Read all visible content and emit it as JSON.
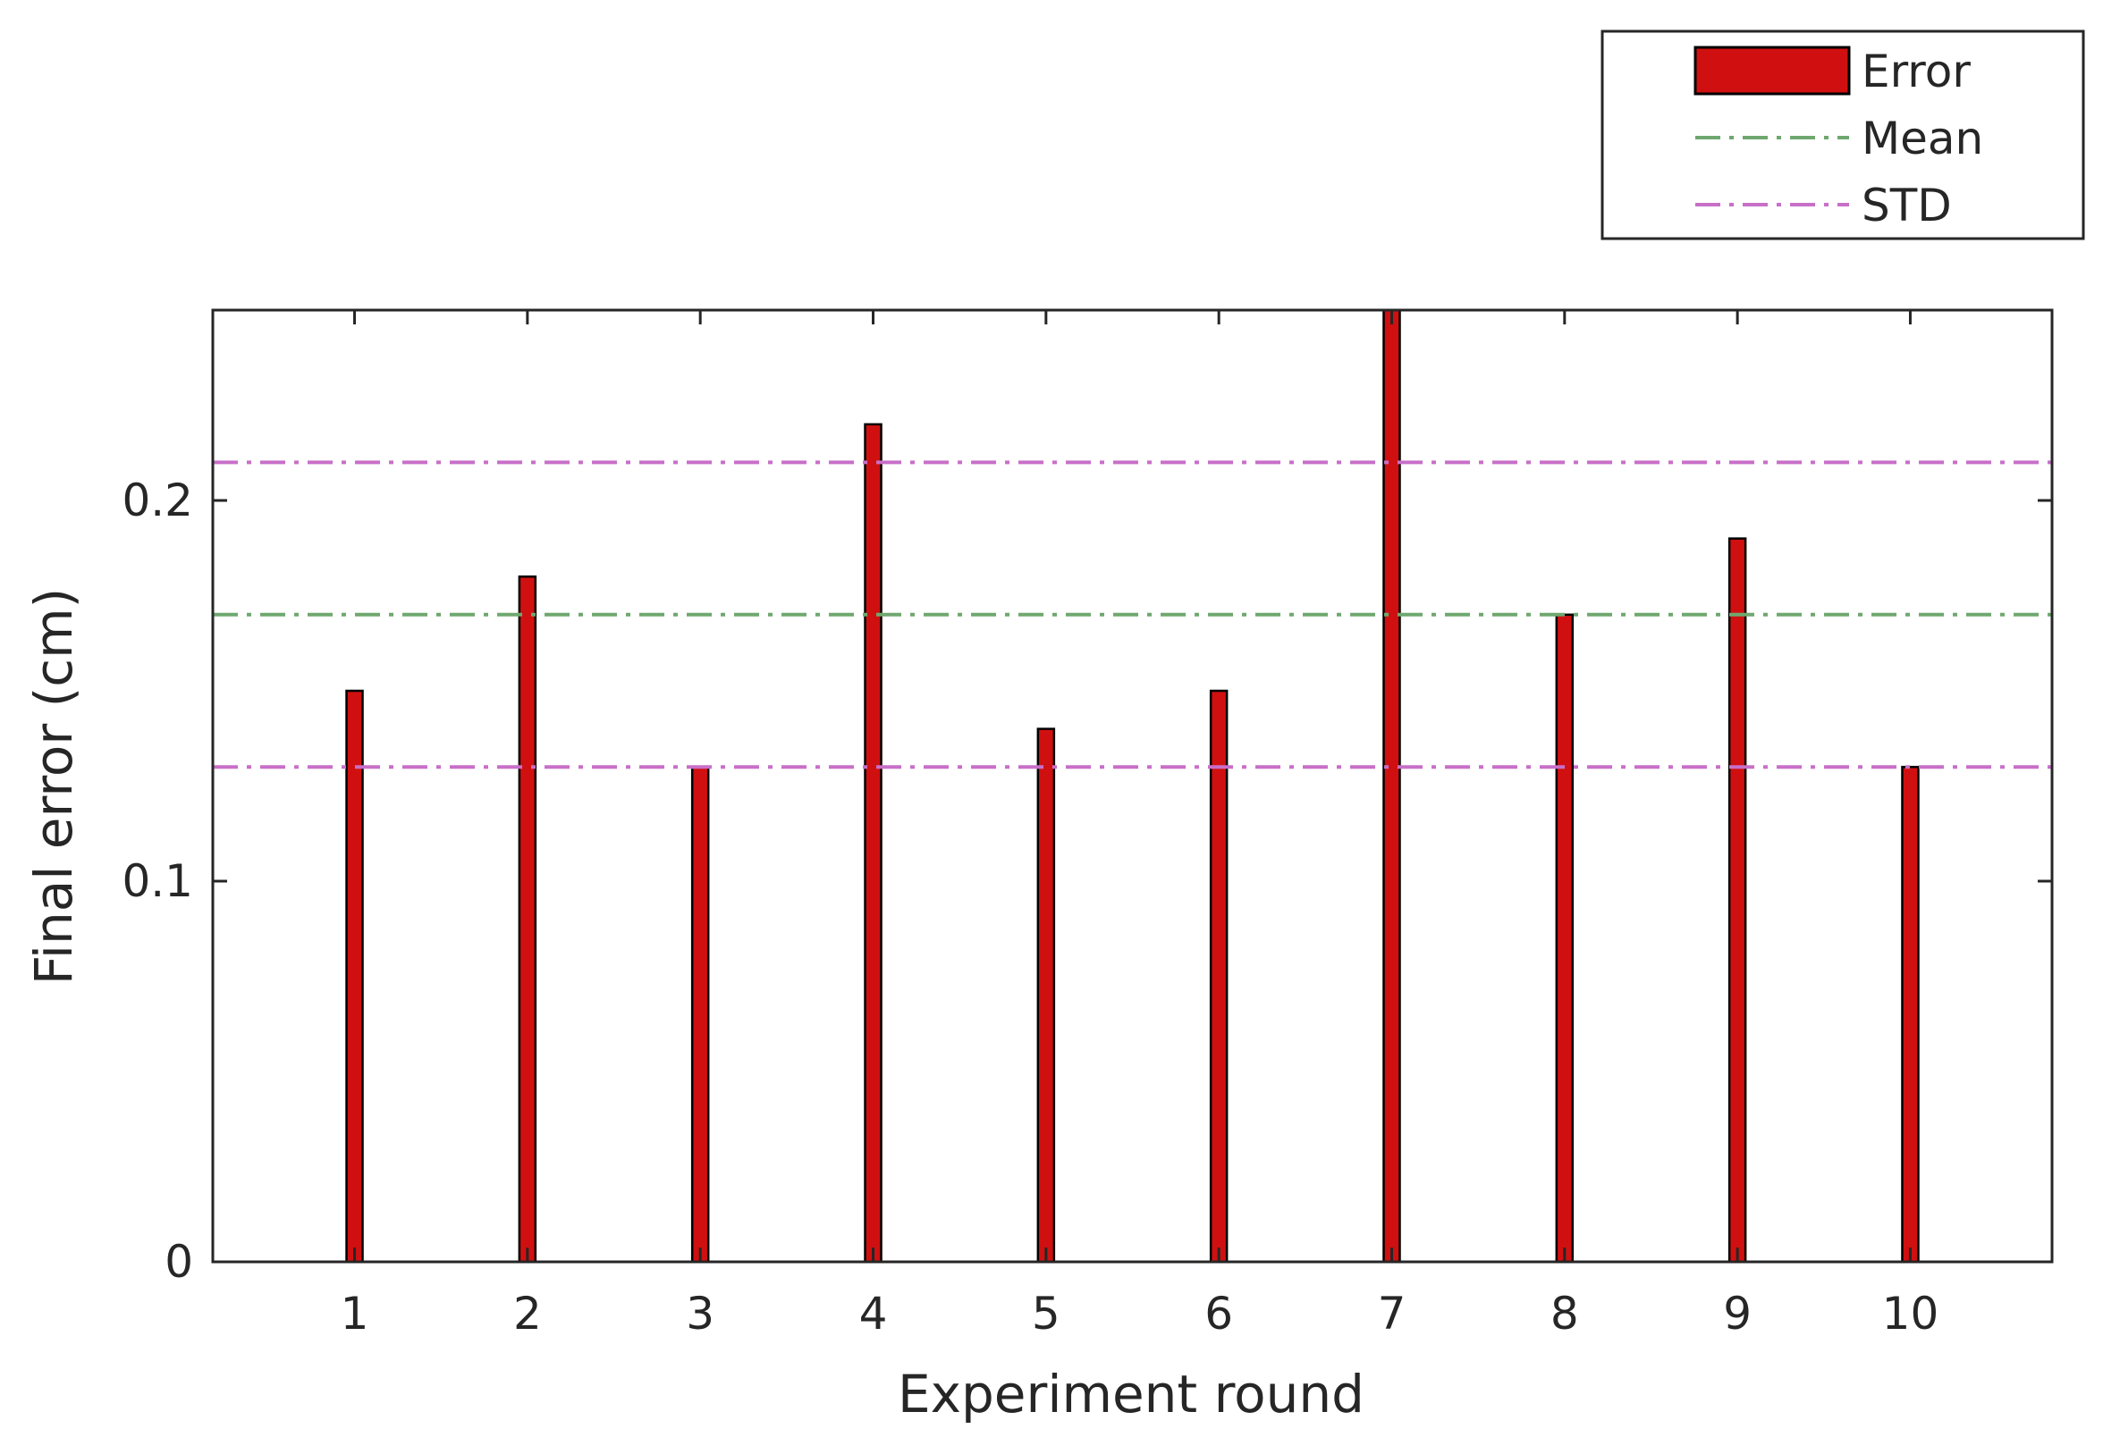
{
  "chart_data": {
    "type": "bar",
    "categories": [
      "1",
      "2",
      "3",
      "4",
      "5",
      "6",
      "7",
      "8",
      "9",
      "10"
    ],
    "series": [
      {
        "name": "Error",
        "values": [
          0.15,
          0.18,
          0.13,
          0.22,
          0.14,
          0.15,
          0.25,
          0.17,
          0.19,
          0.13
        ],
        "color": "#d01010"
      }
    ],
    "reference_lines": [
      {
        "name": "Mean",
        "values": [
          0.17
        ],
        "color": "#6fa86f",
        "style": "dash-dot"
      },
      {
        "name": "STD",
        "values": [
          0.13,
          0.21
        ],
        "color": "#c86fc8",
        "style": "dash-dot"
      }
    ],
    "xlabel": "Experiment round",
    "ylabel": "Final error (cm)",
    "ylim": [
      0,
      0.25
    ],
    "yticks": [
      {
        "value": 0,
        "label": "0"
      },
      {
        "value": 0.1,
        "label": "0.1"
      },
      {
        "value": 0.2,
        "label": "0.2"
      }
    ],
    "grid": false,
    "legend_position": "top-right"
  },
  "colors": {
    "bar_edge": "#000000",
    "axis": "#262626"
  }
}
